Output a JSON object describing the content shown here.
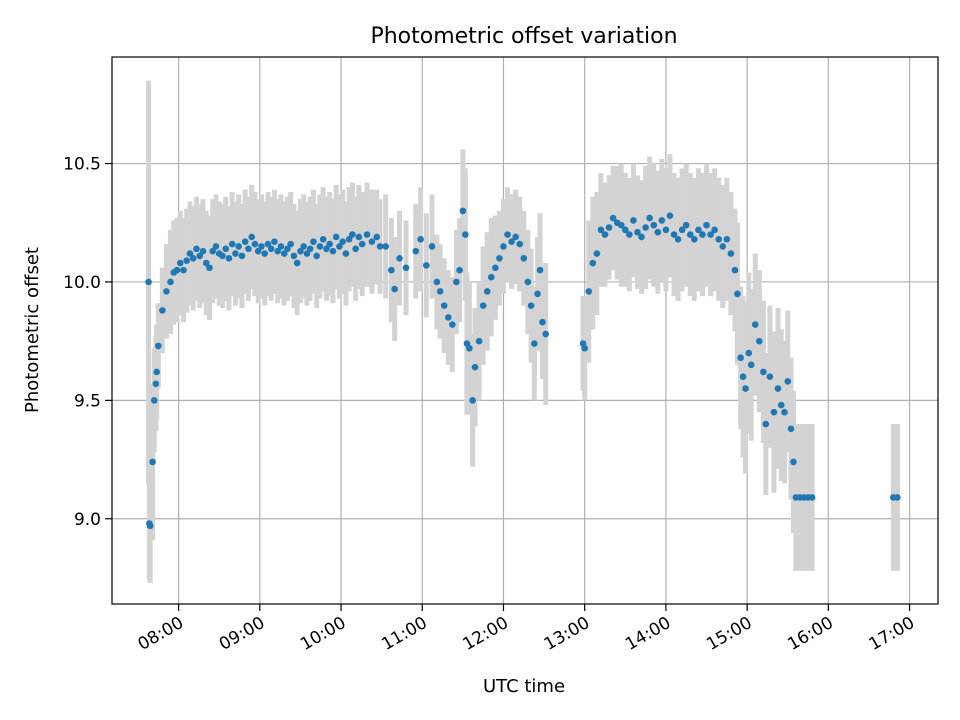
{
  "chart_data": {
    "type": "scatter",
    "title": "Photometric offset variation",
    "xlabel": "UTC time",
    "ylabel": "Photometric offset",
    "x_unit": "hours UTC",
    "xlim": [
      7.18,
      17.35
    ],
    "ylim": [
      8.64,
      10.95
    ],
    "x_ticks": [
      {
        "value": 8,
        "label": "08:00"
      },
      {
        "value": 9,
        "label": "09:00"
      },
      {
        "value": 10,
        "label": "10:00"
      },
      {
        "value": 11,
        "label": "11:00"
      },
      {
        "value": 12,
        "label": "12:00"
      },
      {
        "value": 13,
        "label": "13:00"
      },
      {
        "value": 14,
        "label": "14:00"
      },
      {
        "value": 15,
        "label": "15:00"
      },
      {
        "value": 16,
        "label": "16:00"
      },
      {
        "value": 17,
        "label": "17:00"
      }
    ],
    "y_ticks": [
      {
        "value": 9.0,
        "label": "9.0"
      },
      {
        "value": 9.5,
        "label": "9.5"
      },
      {
        "value": 10.0,
        "label": "10.0"
      },
      {
        "value": 10.5,
        "label": "10.5"
      }
    ],
    "grid": true,
    "colors": {
      "points": "#1f77b4",
      "error_bars": "#d3d3d3"
    },
    "series": [
      {
        "name": "Photometric offset",
        "points": [
          [
            7.63,
            10.0,
            0.85
          ],
          [
            7.64,
            8.98,
            0.24
          ],
          [
            7.65,
            8.97,
            0.24
          ],
          [
            7.68,
            9.24,
            0.33
          ],
          [
            7.7,
            9.5,
            0.22
          ],
          [
            7.72,
            9.57,
            0.2
          ],
          [
            7.73,
            9.62,
            0.2
          ],
          [
            7.75,
            9.73,
            0.18
          ],
          [
            7.8,
            9.88,
            0.18
          ],
          [
            7.85,
            9.96,
            0.2
          ],
          [
            7.9,
            10.0,
            0.22
          ],
          [
            7.94,
            10.04,
            0.22
          ],
          [
            7.98,
            10.05,
            0.22
          ],
          [
            8.02,
            10.08,
            0.22
          ],
          [
            8.06,
            10.05,
            0.22
          ],
          [
            8.1,
            10.09,
            0.22
          ],
          [
            8.14,
            10.12,
            0.22
          ],
          [
            8.18,
            10.1,
            0.22
          ],
          [
            8.22,
            10.14,
            0.22
          ],
          [
            8.26,
            10.11,
            0.22
          ],
          [
            8.3,
            10.13,
            0.22
          ],
          [
            8.34,
            10.08,
            0.22
          ],
          [
            8.38,
            10.06,
            0.22
          ],
          [
            8.42,
            10.13,
            0.22
          ],
          [
            8.46,
            10.15,
            0.22
          ],
          [
            8.5,
            10.12,
            0.22
          ],
          [
            8.54,
            10.11,
            0.22
          ],
          [
            8.58,
            10.14,
            0.22
          ],
          [
            8.62,
            10.1,
            0.22
          ],
          [
            8.66,
            10.16,
            0.22
          ],
          [
            8.7,
            10.12,
            0.22
          ],
          [
            8.74,
            10.15,
            0.22
          ],
          [
            8.78,
            10.11,
            0.22
          ],
          [
            8.82,
            10.17,
            0.22
          ],
          [
            8.86,
            10.14,
            0.22
          ],
          [
            8.9,
            10.19,
            0.22
          ],
          [
            8.94,
            10.16,
            0.22
          ],
          [
            8.98,
            10.13,
            0.22
          ],
          [
            9.02,
            10.15,
            0.22
          ],
          [
            9.06,
            10.12,
            0.22
          ],
          [
            9.1,
            10.16,
            0.22
          ],
          [
            9.14,
            10.14,
            0.22
          ],
          [
            9.18,
            10.17,
            0.22
          ],
          [
            9.22,
            10.13,
            0.22
          ],
          [
            9.26,
            10.15,
            0.22
          ],
          [
            9.3,
            10.12,
            0.22
          ],
          [
            9.34,
            10.14,
            0.22
          ],
          [
            9.38,
            10.16,
            0.22
          ],
          [
            9.42,
            10.11,
            0.22
          ],
          [
            9.46,
            10.08,
            0.22
          ],
          [
            9.5,
            10.13,
            0.22
          ],
          [
            9.54,
            10.15,
            0.22
          ],
          [
            9.58,
            10.12,
            0.22
          ],
          [
            9.62,
            10.14,
            0.22
          ],
          [
            9.66,
            10.17,
            0.22
          ],
          [
            9.7,
            10.11,
            0.22
          ],
          [
            9.74,
            10.15,
            0.22
          ],
          [
            9.78,
            10.18,
            0.22
          ],
          [
            9.82,
            10.14,
            0.22
          ],
          [
            9.86,
            10.16,
            0.22
          ],
          [
            9.9,
            10.13,
            0.22
          ],
          [
            9.94,
            10.19,
            0.22
          ],
          [
            9.98,
            10.15,
            0.22
          ],
          [
            10.02,
            10.17,
            0.22
          ],
          [
            10.06,
            10.12,
            0.22
          ],
          [
            10.1,
            10.18,
            0.22
          ],
          [
            10.14,
            10.2,
            0.22
          ],
          [
            10.18,
            10.14,
            0.22
          ],
          [
            10.22,
            10.19,
            0.22
          ],
          [
            10.26,
            10.16,
            0.22
          ],
          [
            10.32,
            10.2,
            0.22
          ],
          [
            10.38,
            10.17,
            0.22
          ],
          [
            10.44,
            10.19,
            0.2
          ],
          [
            10.48,
            10.15,
            0.2
          ],
          [
            10.55,
            10.15,
            0.22
          ],
          [
            10.62,
            10.05,
            0.22
          ],
          [
            10.66,
            9.97,
            0.22
          ],
          [
            10.72,
            10.1,
            0.2
          ],
          [
            10.8,
            10.06,
            0.2
          ],
          [
            10.92,
            10.13,
            0.2
          ],
          [
            10.98,
            10.18,
            0.22
          ],
          [
            11.05,
            10.07,
            0.22
          ],
          [
            11.12,
            10.15,
            0.22
          ],
          [
            11.18,
            10.0,
            0.2
          ],
          [
            11.22,
            9.96,
            0.2
          ],
          [
            11.27,
            9.9,
            0.2
          ],
          [
            11.32,
            9.85,
            0.2
          ],
          [
            11.37,
            9.82,
            0.2
          ],
          [
            11.42,
            10.0,
            0.22
          ],
          [
            11.46,
            10.05,
            0.22
          ],
          [
            11.5,
            10.3,
            0.26
          ],
          [
            11.53,
            10.2,
            0.28
          ],
          [
            11.55,
            9.74,
            0.3
          ],
          [
            11.58,
            9.72,
            0.28
          ],
          [
            11.62,
            9.5,
            0.28
          ],
          [
            11.65,
            9.64,
            0.25
          ],
          [
            11.7,
            9.75,
            0.25
          ],
          [
            11.75,
            9.9,
            0.25
          ],
          [
            11.8,
            9.96,
            0.25
          ],
          [
            11.85,
            10.02,
            0.25
          ],
          [
            11.9,
            10.06,
            0.22
          ],
          [
            11.95,
            10.1,
            0.2
          ],
          [
            12.0,
            10.15,
            0.2
          ],
          [
            12.05,
            10.2,
            0.2
          ],
          [
            12.1,
            10.17,
            0.2
          ],
          [
            12.15,
            10.19,
            0.2
          ],
          [
            12.2,
            10.16,
            0.2
          ],
          [
            12.25,
            10.1,
            0.2
          ],
          [
            12.3,
            10.0,
            0.22
          ],
          [
            12.34,
            9.9,
            0.24
          ],
          [
            12.38,
            9.74,
            0.24
          ],
          [
            12.42,
            9.95,
            0.24
          ],
          [
            12.45,
            10.05,
            0.24
          ],
          [
            12.48,
            9.83,
            0.24
          ],
          [
            12.52,
            9.78,
            0.3
          ],
          [
            12.98,
            9.74,
            0.2
          ],
          [
            13.0,
            9.72,
            0.22
          ],
          [
            13.05,
            9.96,
            0.3
          ],
          [
            13.1,
            10.08,
            0.28
          ],
          [
            13.15,
            10.12,
            0.26
          ],
          [
            13.2,
            10.22,
            0.24
          ],
          [
            13.25,
            10.2,
            0.22
          ],
          [
            13.3,
            10.23,
            0.22
          ],
          [
            13.35,
            10.27,
            0.22
          ],
          [
            13.4,
            10.25,
            0.24
          ],
          [
            13.45,
            10.24,
            0.26
          ],
          [
            13.5,
            10.22,
            0.24
          ],
          [
            13.55,
            10.2,
            0.24
          ],
          [
            13.6,
            10.26,
            0.24
          ],
          [
            13.65,
            10.21,
            0.24
          ],
          [
            13.7,
            10.19,
            0.24
          ],
          [
            13.75,
            10.23,
            0.26
          ],
          [
            13.8,
            10.27,
            0.26
          ],
          [
            13.85,
            10.24,
            0.26
          ],
          [
            13.9,
            10.21,
            0.26
          ],
          [
            13.95,
            10.26,
            0.26
          ],
          [
            14.0,
            10.22,
            0.26
          ],
          [
            14.05,
            10.28,
            0.26
          ],
          [
            14.1,
            10.2,
            0.26
          ],
          [
            14.15,
            10.18,
            0.26
          ],
          [
            14.2,
            10.22,
            0.26
          ],
          [
            14.25,
            10.24,
            0.26
          ],
          [
            14.3,
            10.2,
            0.26
          ],
          [
            14.35,
            10.18,
            0.26
          ],
          [
            14.4,
            10.22,
            0.26
          ],
          [
            14.45,
            10.2,
            0.26
          ],
          [
            14.5,
            10.24,
            0.26
          ],
          [
            14.55,
            10.2,
            0.26
          ],
          [
            14.6,
            10.22,
            0.26
          ],
          [
            14.65,
            10.18,
            0.26
          ],
          [
            14.7,
            10.15,
            0.26
          ],
          [
            14.75,
            10.18,
            0.26
          ],
          [
            14.8,
            10.12,
            0.26
          ],
          [
            14.85,
            10.05,
            0.26
          ],
          [
            14.88,
            9.95,
            0.3
          ],
          [
            14.92,
            9.68,
            0.3
          ],
          [
            14.95,
            9.6,
            0.34
          ],
          [
            14.98,
            9.55,
            0.36
          ],
          [
            15.02,
            9.7,
            0.34
          ],
          [
            15.05,
            9.65,
            0.32
          ],
          [
            15.1,
            9.82,
            0.3
          ],
          [
            15.15,
            9.75,
            0.3
          ],
          [
            15.2,
            9.62,
            0.3
          ],
          [
            15.23,
            9.4,
            0.3
          ],
          [
            15.28,
            9.6,
            0.3
          ],
          [
            15.33,
            9.45,
            0.34
          ],
          [
            15.38,
            9.55,
            0.34
          ],
          [
            15.42,
            9.48,
            0.32
          ],
          [
            15.46,
            9.45,
            0.3
          ],
          [
            15.5,
            9.58,
            0.3
          ],
          [
            15.54,
            9.38,
            0.3
          ],
          [
            15.57,
            9.24,
            0.3
          ],
          [
            15.6,
            9.09,
            0.31
          ],
          [
            15.65,
            9.09,
            0.31
          ],
          [
            15.7,
            9.09,
            0.31
          ],
          [
            15.75,
            9.09,
            0.31
          ],
          [
            15.8,
            9.09,
            0.31
          ],
          [
            16.8,
            9.09,
            0.31
          ],
          [
            16.85,
            9.09,
            0.31
          ]
        ]
      }
    ]
  }
}
